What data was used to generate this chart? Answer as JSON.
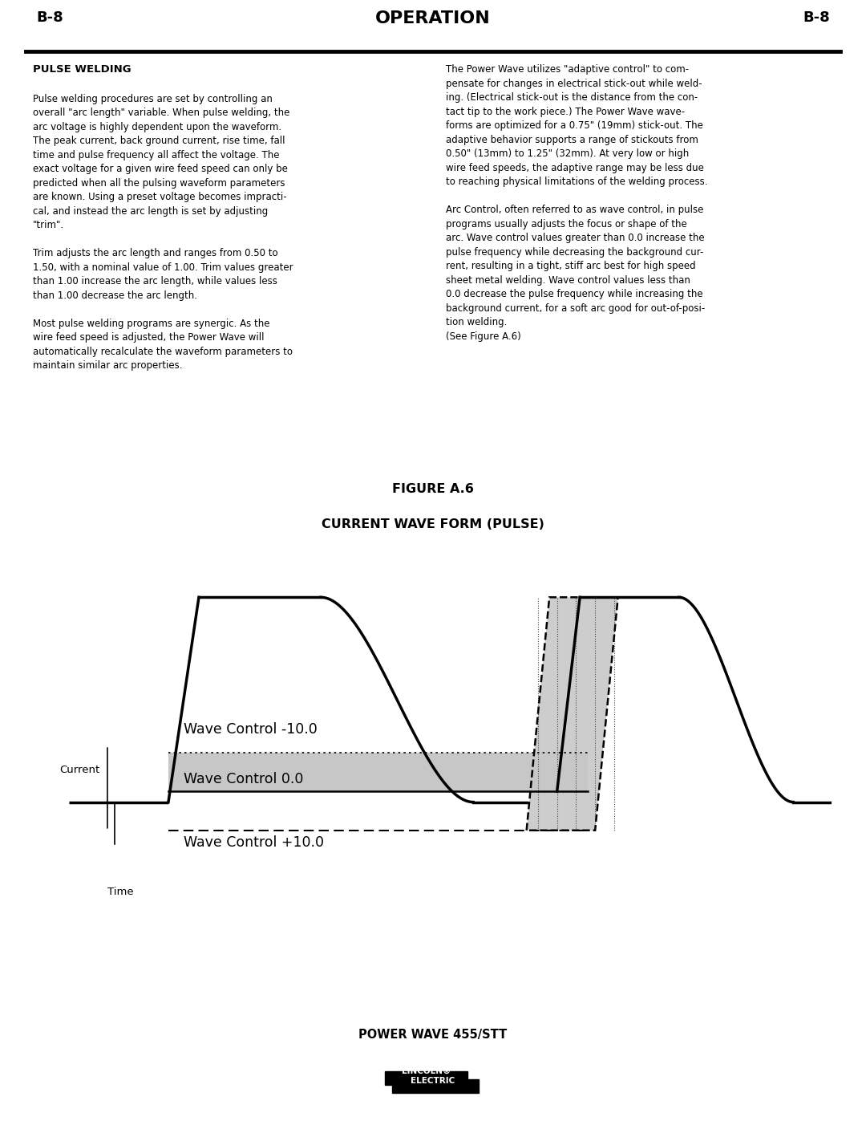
{
  "header_left": "B-8",
  "header_center": "OPERATION",
  "header_right": "B-8",
  "section_title": "PULSE WELDING",
  "fig_title1": "FIGURE A.6",
  "fig_title2": "CURRENT WAVE FORM (PULSE)",
  "label_current": "Current",
  "label_time": "Time",
  "label_wc_neg": "Wave Control -10.0",
  "label_wc_zero": "Wave Control 0.0",
  "label_wc_pos": "Wave Control +10.0",
  "footer_title": "POWER WAVE 455/STT",
  "bg_color": "#ffffff",
  "black": "#000000",
  "gray": "#c0c0c0",
  "dark_gray": "#888888"
}
